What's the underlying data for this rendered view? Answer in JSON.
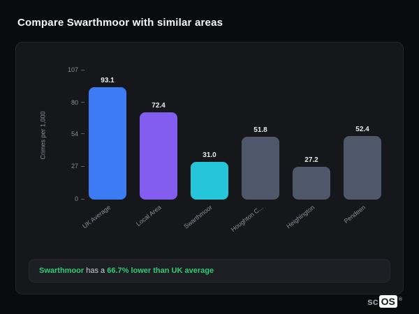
{
  "page": {
    "title": "Compare Swarthmoor with similar areas"
  },
  "chart_data": {
    "type": "bar",
    "title": "",
    "xlabel": "",
    "ylabel": "Crimes per 1,000",
    "ylim": [
      0,
      107
    ],
    "ymax": 107,
    "yticks": [
      107,
      80,
      54,
      27,
      0
    ],
    "grid": false,
    "legend": false,
    "categories": [
      "UK Average",
      "Local Area",
      "Swarthmoor",
      "Houghton C...",
      "Heighington",
      "Pendeen"
    ],
    "values": [
      93.1,
      72.4,
      31.0,
      51.8,
      27.2,
      52.4
    ],
    "value_labels": [
      "93.1",
      "72.4",
      "31.0",
      "51.8",
      "27.2",
      "52.4"
    ],
    "colors": [
      "#3d7bf4",
      "#835df0",
      "#26c6da",
      "#4e586a",
      "#4e586a",
      "#4e586a"
    ]
  },
  "note": {
    "prefix": "Swarthmoor",
    "middle": " has a ",
    "highlight": "66.7% lower than UK average",
    "accent_color": "#2ecc71"
  },
  "logo": {
    "prefix": "sc",
    "suffix": "OS",
    "reg": "®"
  }
}
